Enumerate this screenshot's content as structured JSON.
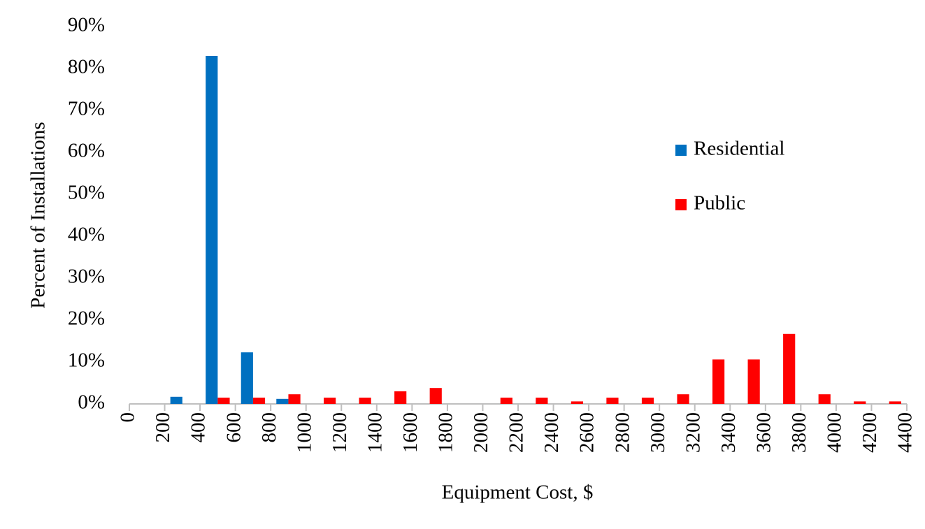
{
  "chart_data": {
    "type": "histogram",
    "x_label": "Equipment Cost, $",
    "y_label": "Percent of Installations",
    "bins": [
      0,
      200,
      400,
      600,
      800,
      1000,
      1200,
      1400,
      1600,
      1800,
      2000,
      2200,
      2400,
      2600,
      2800,
      3000,
      3200,
      3400,
      3600,
      3800,
      4000,
      4200,
      4400
    ],
    "series": [
      {
        "name": "Residential",
        "color": "#0070c0",
        "values": [
          0,
          1.7,
          83,
          12.3,
          1.2,
          0,
          0,
          0,
          0,
          0,
          0,
          0,
          0,
          0,
          0,
          0,
          0,
          0,
          0,
          0,
          0,
          0
        ]
      },
      {
        "name": "Public",
        "color": "#ff0000",
        "values": [
          0,
          0,
          1.5,
          1.5,
          2.3,
          1.5,
          1.5,
          3,
          3.8,
          0,
          1.5,
          1.5,
          0.6,
          1.5,
          1.5,
          2.3,
          10.6,
          10.6,
          16.7,
          2.3,
          0.6,
          0.6
        ]
      }
    ],
    "xlim": [
      0,
      4400
    ],
    "ylim": [
      0,
      90
    ],
    "yticks": [
      {
        "value": 0,
        "label": "0%"
      },
      {
        "value": 10,
        "label": "10%"
      },
      {
        "value": 20,
        "label": "20%"
      },
      {
        "value": 30,
        "label": "30%"
      },
      {
        "value": 40,
        "label": "40%"
      },
      {
        "value": 50,
        "label": "50%"
      },
      {
        "value": 60,
        "label": "60%"
      },
      {
        "value": 70,
        "label": "70%"
      },
      {
        "value": 80,
        "label": "80%"
      },
      {
        "value": 90,
        "label": "90%"
      }
    ],
    "grid": false,
    "legend": "right"
  }
}
